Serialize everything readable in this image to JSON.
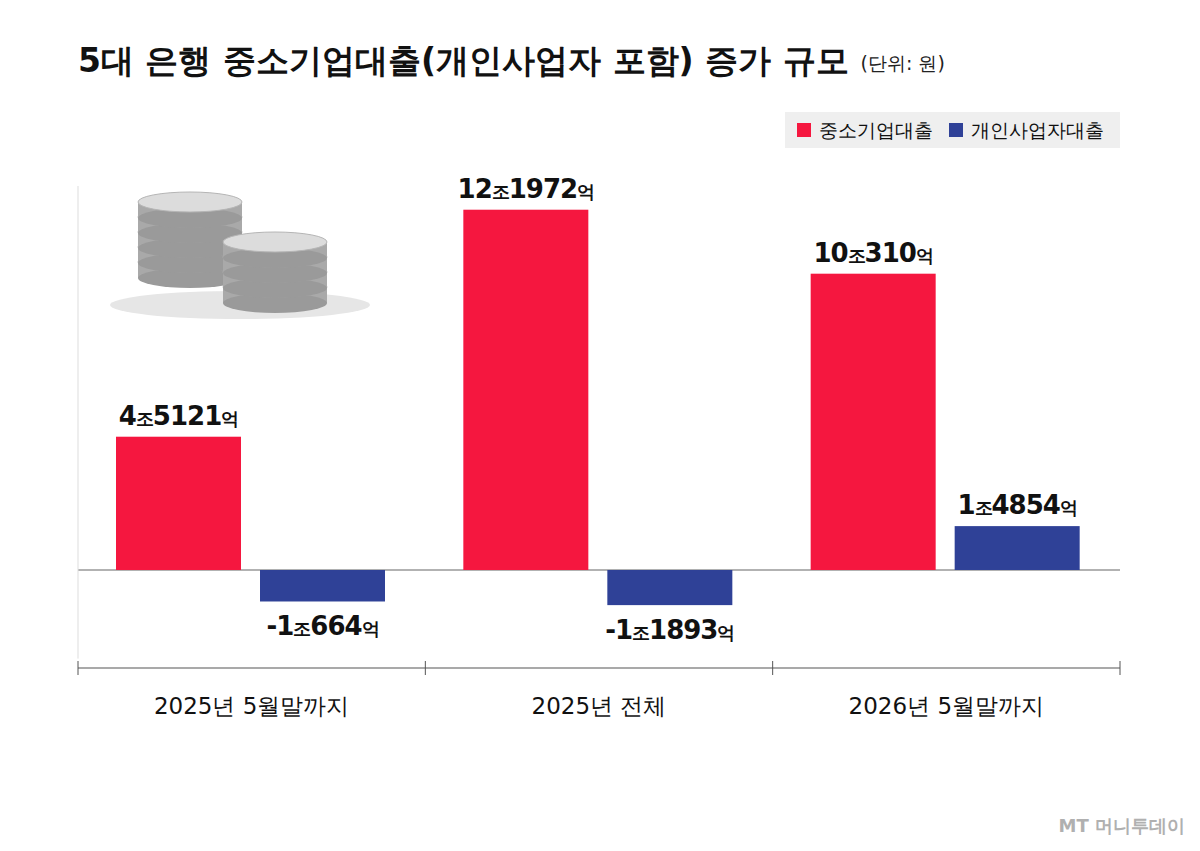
{
  "chart_data": {
    "type": "bar",
    "title": "5대 은행 중소기업대출(개인사업자 포함) 증가 규모",
    "subtitle": "(단위: 원)",
    "source": "MT 머니투데이",
    "categories": [
      "2025년 5월말까지",
      "2025년 전체",
      "2026년 5월말까지"
    ],
    "series": [
      {
        "name": "중소기업대출",
        "color": "#f5173f",
        "values": [
          45121,
          121972,
          100310
        ],
        "value_labels": [
          "4조5121억",
          "12조1972억",
          "10조310억"
        ]
      },
      {
        "name": "개인사업자대출",
        "color": "#2f4197",
        "values": [
          -10664,
          -11893,
          14854
        ],
        "value_labels": [
          "-1조664억",
          "-1조1893억",
          "1조4854억"
        ]
      }
    ],
    "ylim": [
      -30000,
      130000
    ],
    "yticks": [
      0
    ],
    "tick_labels": "x",
    "data_labels": true,
    "legend": "top-right",
    "grid": false
  }
}
